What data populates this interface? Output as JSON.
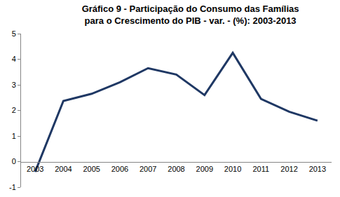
{
  "chart_data": {
    "type": "line",
    "title": "Gráfico 9 - Participação do Consumo das Famílias\npara o Crescimento do PIB - var. - (%): 2003-2013",
    "categories": [
      "2003",
      "2004",
      "2005",
      "2006",
      "2007",
      "2008",
      "2009",
      "2010",
      "2011",
      "2012",
      "2013"
    ],
    "values": [
      -0.4,
      2.37,
      2.65,
      3.1,
      3.65,
      3.4,
      2.6,
      4.25,
      2.45,
      1.95,
      1.6
    ],
    "color": "#1f3864",
    "ylim": [
      -1,
      5
    ],
    "yticks": [
      -1,
      0,
      1,
      2,
      3,
      4,
      5
    ],
    "grid": false
  }
}
